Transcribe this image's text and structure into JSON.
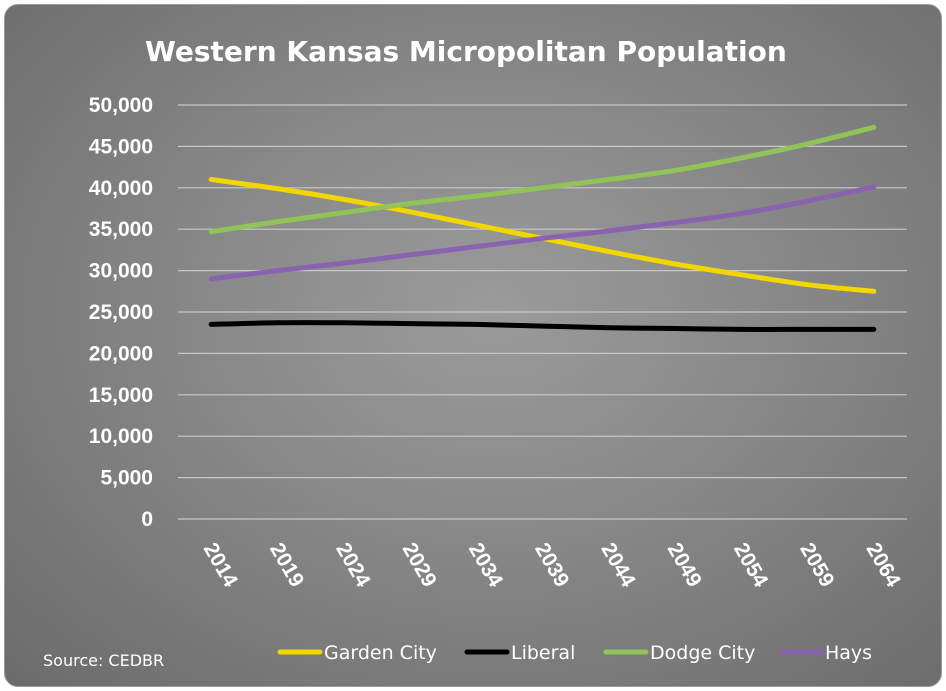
{
  "chart_data": {
    "type": "line",
    "title": "Western Kansas Micropolitan Population",
    "xlabel": "",
    "ylabel": "",
    "ylim": [
      0,
      50000
    ],
    "yticks": [
      "0",
      "5,000",
      "10,000",
      "15,000",
      "20,000",
      "25,000",
      "30,000",
      "35,000",
      "40,000",
      "45,000",
      "50,000"
    ],
    "x": [
      "2014",
      "2019",
      "2024",
      "2029",
      "2034",
      "2039",
      "2044",
      "2049",
      "2054",
      "2059",
      "2064"
    ],
    "grid": true,
    "legend_position": "bottom",
    "series": [
      {
        "name": "Garden City",
        "color": "#f2d600",
        "values": [
          41000,
          39900,
          38600,
          37100,
          35500,
          33900,
          32300,
          30800,
          29500,
          28300,
          27500
        ]
      },
      {
        "name": "Liberal",
        "color": "#000000",
        "values": [
          23500,
          23700,
          23700,
          23600,
          23500,
          23300,
          23100,
          23000,
          22900,
          22900,
          22900
        ]
      },
      {
        "name": "Dodge City",
        "color": "#92c25a",
        "values": [
          34700,
          35900,
          37000,
          38100,
          39000,
          40000,
          41000,
          42100,
          43600,
          45300,
          47300
        ]
      },
      {
        "name": "Hays",
        "color": "#8a63b0",
        "values": [
          29000,
          30000,
          30900,
          31900,
          32900,
          33900,
          34800,
          35800,
          36900,
          38400,
          40100
        ]
      }
    ],
    "source": "Source: CEDBR"
  }
}
